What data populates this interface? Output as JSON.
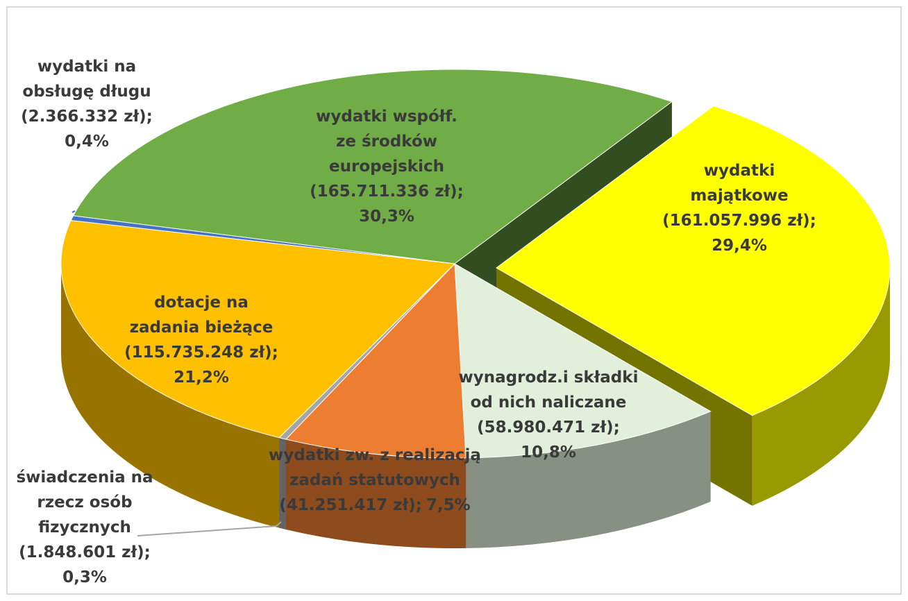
{
  "chart_data": {
    "type": "pie3d",
    "categories": [
      "wydatki\nmajątkowe",
      "wynagrodz.i składki\nod nich naliczane",
      "wydatki zw. z realizacją\nzadań statutowych",
      "świadczenia na\nrzecz osób\nfizycznych",
      "dotacje na\nzadania bieżące",
      "wydatki na\nobsługę długu",
      "wydatki współf.\nze środków\neuropejskich"
    ],
    "amounts": [
      161057996,
      58980471,
      41251417,
      1848601,
      115735248,
      2366332,
      165711336
    ],
    "amount_labels": [
      "(161.057.996 zł);",
      "(58.980.471 zł);",
      "(41.251.417 zł);",
      "(1.848.601 zł);",
      "(115.735.248 zł);",
      "(2.366.332 zł);",
      "(165.711.336 zł);"
    ],
    "values": [
      29.4,
      10.8,
      7.5,
      0.3,
      21.2,
      0.4,
      30.3
    ],
    "value_labels": [
      "29,4%",
      "10,8%",
      "7,5%",
      "0,3%",
      "21,2%",
      "0,4%",
      "30,3%"
    ],
    "colors": [
      "#ffff00",
      "#e2efda",
      "#ed7d31",
      "#a5a5a5",
      "#ffc000",
      "#4472c4",
      "#70ad47"
    ],
    "exploded": [
      0
    ]
  }
}
